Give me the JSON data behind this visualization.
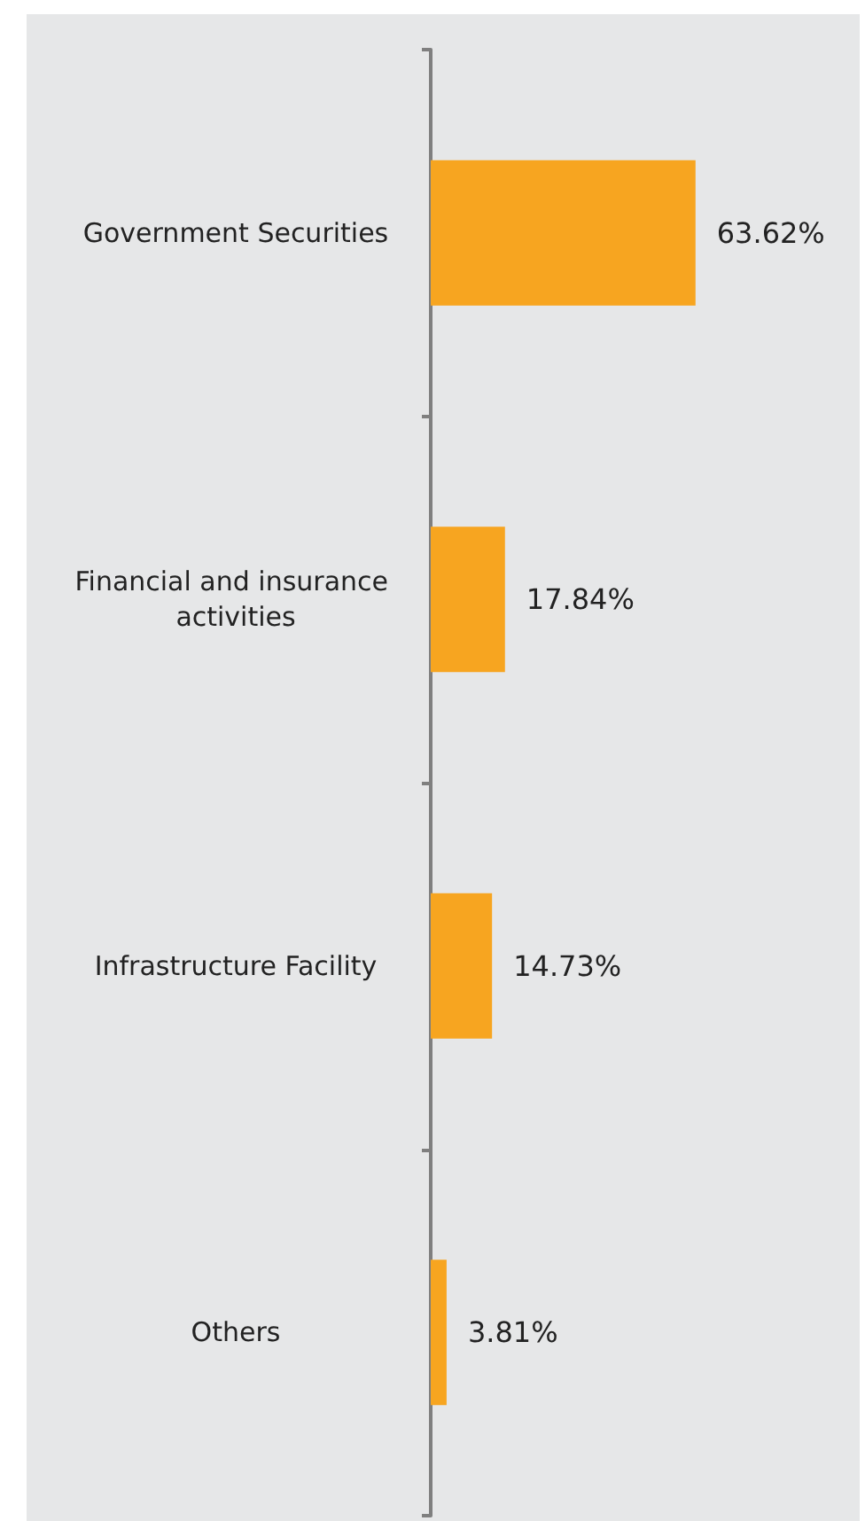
{
  "chart_data": {
    "type": "bar",
    "orientation": "horizontal",
    "categories": [
      "Government Securities",
      "Financial and insurance activities",
      "Infrastructure Facility",
      "Others"
    ],
    "values": [
      63.62,
      17.84,
      14.73,
      3.81
    ],
    "color": "#f7a520",
    "data_labels": true,
    "value_labels": [
      "63.62%",
      "17.84%",
      "14.73%",
      "3.81%"
    ],
    "tick_labels": "y"
  }
}
